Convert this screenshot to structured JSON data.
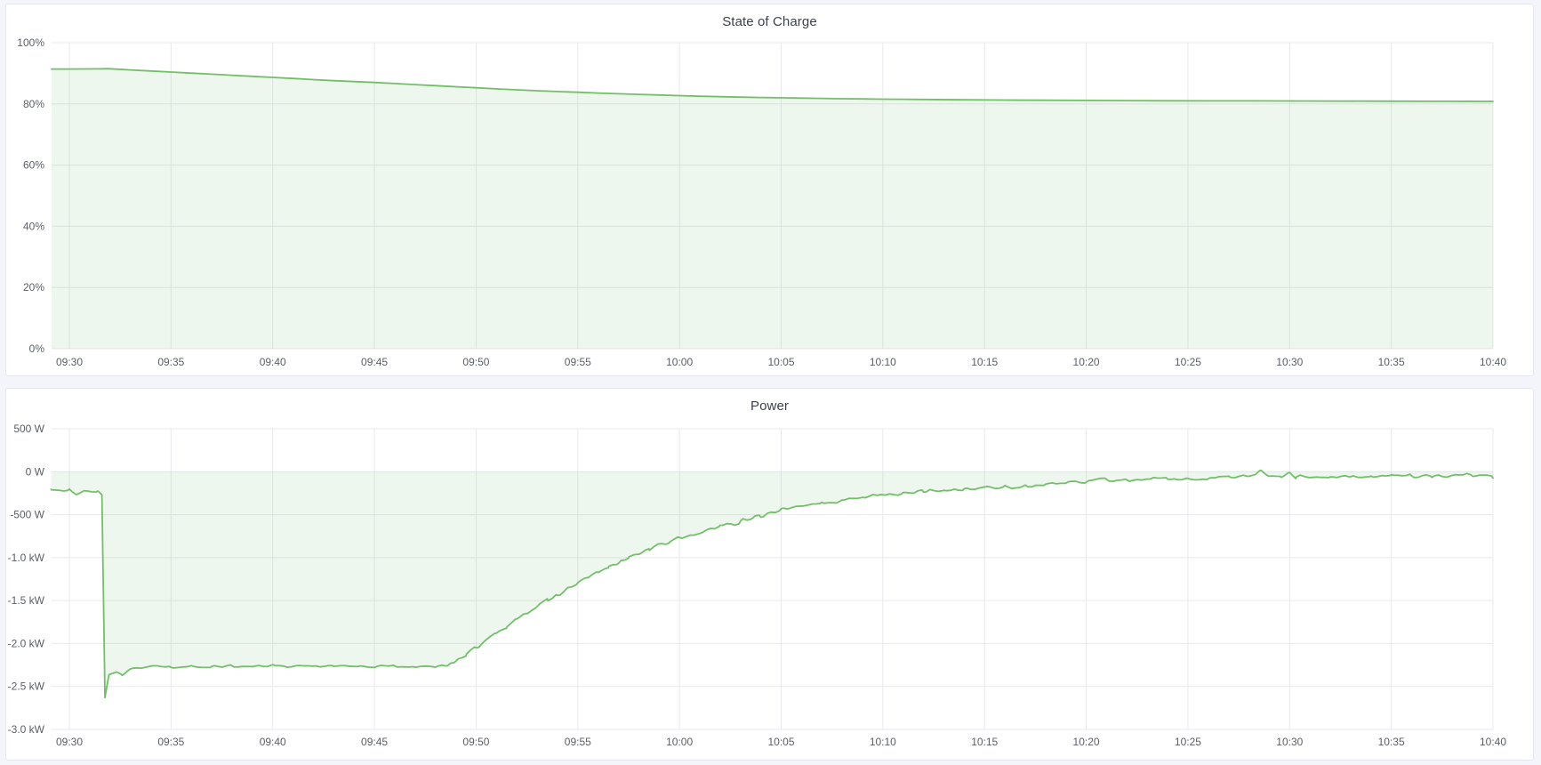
{
  "page": {
    "background": "#f4f5fa",
    "theme": "light"
  },
  "panels": [
    {
      "title": "State of Charge"
    },
    {
      "title": "Power"
    }
  ],
  "chart_data": [
    {
      "type": "area",
      "title": "State of Charge",
      "xlabel": "",
      "ylabel": "",
      "x_unit": "time",
      "x_range": [
        "09:30",
        "10:40"
      ],
      "x_tick_labels": [
        "09:30",
        "09:35",
        "09:40",
        "09:45",
        "09:50",
        "09:55",
        "10:00",
        "10:05",
        "10:10",
        "10:15",
        "10:20",
        "10:25",
        "10:30",
        "10:35",
        "10:40"
      ],
      "ylim": [
        0,
        100
      ],
      "y_ticks": [
        {
          "value": 100,
          "label": "100%"
        },
        {
          "value": 80,
          "label": "80%"
        },
        {
          "value": 60,
          "label": "60%"
        },
        {
          "value": 40,
          "label": "40%"
        },
        {
          "value": 20,
          "label": "20%"
        },
        {
          "value": 0,
          "label": "0%"
        }
      ],
      "grid": true,
      "legend": "none",
      "line_color": "#73bf69",
      "fill_color": "rgba(115,191,105,0.12)",
      "series_name": "State of Charge",
      "points_t_minutes_from_0930_vs_percent": [
        [
          -0.9,
          91.4
        ],
        [
          0,
          91.4
        ],
        [
          0.9,
          91.42
        ],
        [
          1.5,
          91.45
        ],
        [
          1.9,
          91.52
        ],
        [
          2.3,
          91.38
        ],
        [
          3,
          91.1
        ],
        [
          4,
          90.75
        ],
        [
          5,
          90.4
        ],
        [
          6,
          90.05
        ],
        [
          7,
          89.7
        ],
        [
          8,
          89.35
        ],
        [
          9,
          89.0
        ],
        [
          10,
          88.65
        ],
        [
          11,
          88.3
        ],
        [
          12,
          87.95
        ],
        [
          13,
          87.6
        ],
        [
          14,
          87.3
        ],
        [
          15,
          87.0
        ],
        [
          16,
          86.65
        ],
        [
          17,
          86.3
        ],
        [
          18,
          85.95
        ],
        [
          19,
          85.6
        ],
        [
          20,
          85.25
        ],
        [
          21,
          84.9
        ],
        [
          22,
          84.6
        ],
        [
          23,
          84.3
        ],
        [
          24,
          84.05
        ],
        [
          25,
          83.8
        ],
        [
          26,
          83.55
        ],
        [
          27,
          83.3
        ],
        [
          28,
          83.1
        ],
        [
          29,
          82.9
        ],
        [
          30,
          82.7
        ],
        [
          31,
          82.5
        ],
        [
          32,
          82.35
        ],
        [
          33,
          82.2
        ],
        [
          34,
          82.1
        ],
        [
          35,
          82.0
        ],
        [
          36,
          81.9
        ],
        [
          37,
          81.8
        ],
        [
          38,
          81.7
        ],
        [
          39,
          81.62
        ],
        [
          40,
          81.55
        ],
        [
          42,
          81.45
        ],
        [
          44,
          81.35
        ],
        [
          46,
          81.25
        ],
        [
          48,
          81.18
        ],
        [
          50,
          81.12
        ],
        [
          52,
          81.08
        ],
        [
          54,
          81.03
        ],
        [
          56,
          81.0
        ],
        [
          58,
          80.98
        ],
        [
          60,
          80.95
        ],
        [
          62,
          80.92
        ],
        [
          64,
          80.9
        ],
        [
          66,
          80.87
        ],
        [
          68,
          80.84
        ],
        [
          70,
          80.82
        ]
      ],
      "noise_segments": []
    },
    {
      "type": "area",
      "title": "Power",
      "xlabel": "",
      "ylabel": "",
      "x_unit": "time",
      "x_range": [
        "09:30",
        "10:40"
      ],
      "x_tick_labels": [
        "09:30",
        "09:35",
        "09:40",
        "09:45",
        "09:50",
        "09:55",
        "10:00",
        "10:05",
        "10:10",
        "10:15",
        "10:20",
        "10:25",
        "10:30",
        "10:35",
        "10:40"
      ],
      "ylim": [
        -3000,
        500
      ],
      "y_ticks": [
        {
          "value": 500,
          "label": "500 W"
        },
        {
          "value": 0,
          "label": "0 W"
        },
        {
          "value": -500,
          "label": "-500 W"
        },
        {
          "value": -1000,
          "label": "-1.0 kW"
        },
        {
          "value": -1500,
          "label": "-1.5 kW"
        },
        {
          "value": -2000,
          "label": "-2.0 kW"
        },
        {
          "value": -2500,
          "label": "-2.5 kW"
        },
        {
          "value": -3000,
          "label": "-3.0 kW"
        }
      ],
      "grid": true,
      "legend": "none",
      "line_color": "#73bf69",
      "fill_color": "rgba(115,191,105,0.12)",
      "series_name": "Power",
      "points_t_minutes_from_0930_vs_watts": [
        [
          -0.9,
          -200
        ],
        [
          0,
          -215
        ],
        [
          0.35,
          -255
        ],
        [
          0.7,
          -215
        ],
        [
          1.05,
          -245
        ],
        [
          1.4,
          -230
        ],
        [
          1.6,
          -270
        ],
        [
          1.75,
          -2630
        ],
        [
          1.95,
          -2360
        ],
        [
          2.3,
          -2330
        ],
        [
          2.6,
          -2370
        ],
        [
          3,
          -2300
        ],
        [
          3.5,
          -2280
        ],
        [
          4,
          -2265
        ],
        [
          5,
          -2275
        ],
        [
          6,
          -2260
        ],
        [
          7,
          -2270
        ],
        [
          8,
          -2262
        ],
        [
          9,
          -2272
        ],
        [
          10,
          -2258
        ],
        [
          11,
          -2268
        ],
        [
          12,
          -2262
        ],
        [
          13,
          -2270
        ],
        [
          14,
          -2258
        ],
        [
          15,
          -2268
        ],
        [
          16,
          -2262
        ],
        [
          17,
          -2270
        ],
        [
          18,
          -2265
        ],
        [
          18.6,
          -2255
        ],
        [
          19,
          -2215
        ],
        [
          19.5,
          -2135
        ],
        [
          20,
          -2050
        ],
        [
          20.5,
          -1965
        ],
        [
          21,
          -1885
        ],
        [
          21.5,
          -1805
        ],
        [
          22,
          -1725
        ],
        [
          22.5,
          -1650
        ],
        [
          23,
          -1580
        ],
        [
          23.5,
          -1505
        ],
        [
          24,
          -1435
        ],
        [
          24.5,
          -1365
        ],
        [
          25,
          -1295
        ],
        [
          25.5,
          -1232
        ],
        [
          26,
          -1170
        ],
        [
          26.5,
          -1112
        ],
        [
          27,
          -1055
        ],
        [
          27.5,
          -1002
        ],
        [
          28,
          -950
        ],
        [
          28.5,
          -902
        ],
        [
          29,
          -856
        ],
        [
          29.5,
          -815
        ],
        [
          30,
          -775
        ],
        [
          31,
          -705
        ],
        [
          32,
          -640
        ],
        [
          33,
          -578
        ],
        [
          34,
          -520
        ],
        [
          35,
          -442
        ],
        [
          36,
          -400
        ],
        [
          37,
          -363
        ],
        [
          38,
          -330
        ],
        [
          39,
          -296
        ],
        [
          40,
          -265
        ],
        [
          41,
          -246
        ],
        [
          42,
          -230
        ],
        [
          43,
          -214
        ],
        [
          44,
          -200
        ],
        [
          45,
          -190
        ],
        [
          46,
          -180
        ],
        [
          47,
          -165
        ],
        [
          48,
          -150
        ],
        [
          49,
          -135
        ],
        [
          50,
          -118
        ],
        [
          50.6,
          -92
        ],
        [
          51,
          -86
        ],
        [
          52,
          -96
        ],
        [
          53,
          -90
        ],
        [
          54,
          -86
        ],
        [
          55,
          -84
        ],
        [
          56,
          -76
        ],
        [
          57,
          -70
        ],
        [
          58,
          -62
        ],
        [
          58.6,
          10
        ],
        [
          59,
          -58
        ],
        [
          59.6,
          -60
        ],
        [
          60,
          -15
        ],
        [
          60.3,
          -62
        ],
        [
          61,
          -52
        ],
        [
          62,
          -58
        ],
        [
          63,
          -60
        ],
        [
          64,
          -55
        ],
        [
          65,
          -50
        ],
        [
          66,
          -46
        ],
        [
          67,
          -52
        ],
        [
          68,
          -42
        ],
        [
          69,
          -46
        ],
        [
          70,
          -58
        ]
      ],
      "noise_segments": [
        [
          -1.0,
          1.55,
          20
        ],
        [
          1.55,
          2.4,
          4
        ],
        [
          2.4,
          18.6,
          15
        ],
        [
          18.6,
          30.0,
          28
        ],
        [
          30.0,
          46.0,
          30
        ],
        [
          46.0,
          70.2,
          26
        ]
      ]
    }
  ],
  "style": {
    "grid_color": "#e8e9ed",
    "tick_label_color": "#5a5e66",
    "title_color": "#3d414b",
    "panel_background": "#ffffff",
    "panel_border": "#e4e7ee"
  }
}
